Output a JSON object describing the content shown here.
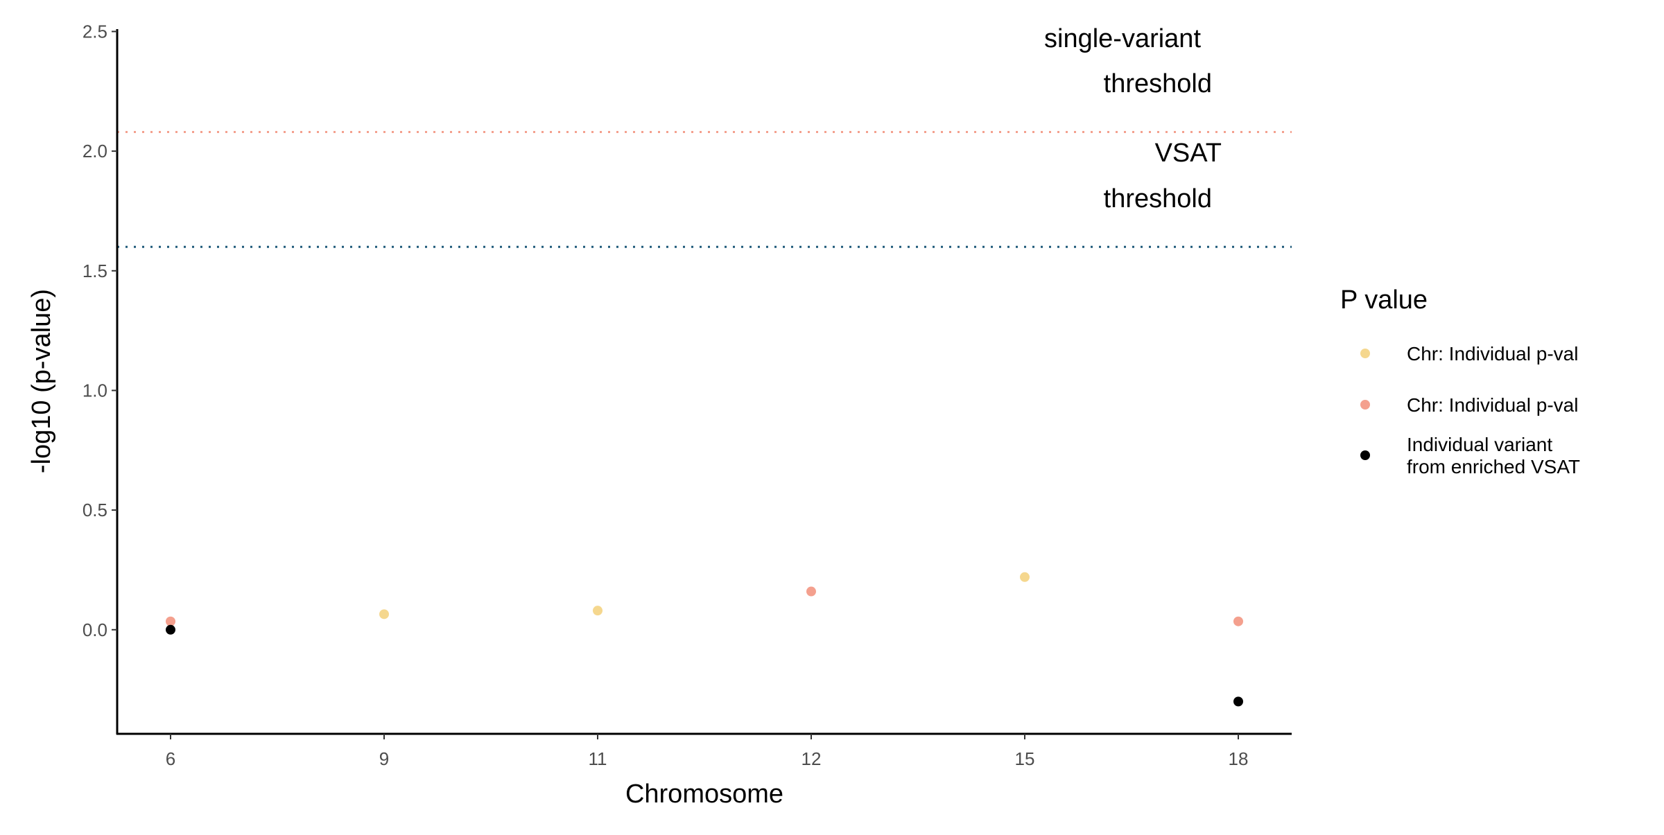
{
  "chart_data": {
    "type": "scatter",
    "xlabel": "Chromosome",
    "ylabel": "-log10 (p-value)",
    "x_categories": [
      "6",
      "9",
      "11",
      "12",
      "15",
      "18"
    ],
    "ylim": [
      -0.435,
      2.51
    ],
    "y_ticks": [
      0.0,
      0.5,
      1.0,
      1.5,
      2.0,
      2.5
    ],
    "y_tick_labels": [
      "0.0",
      "0.5",
      "1.0",
      "1.5",
      "2.0",
      "2.5"
    ],
    "grid": false,
    "points": [
      {
        "x": "6",
        "y": 0.035,
        "series": 1
      },
      {
        "x": "6",
        "y": 0.0,
        "series": 2
      },
      {
        "x": "9",
        "y": 0.065,
        "series": 0
      },
      {
        "x": "11",
        "y": 0.08,
        "series": 0
      },
      {
        "x": "12",
        "y": 0.16,
        "series": 1
      },
      {
        "x": "15",
        "y": 0.22,
        "series": 0
      },
      {
        "x": "18",
        "y": 0.035,
        "series": 1
      },
      {
        "x": "18",
        "y": -0.3,
        "series": 2
      }
    ],
    "hlines": [
      {
        "y": 2.08,
        "color": "#F4A08E",
        "label_lines": [
          "single-variant",
          "threshold"
        ]
      },
      {
        "y": 1.6,
        "color": "#1F5A7A",
        "label_lines": [
          "VSAT",
          "threshold"
        ]
      }
    ],
    "legend": {
      "title": "P value",
      "placement": "right",
      "entries": [
        {
          "lines": [
            "Chr: Individual p-val"
          ],
          "color": "#F5D78E"
        },
        {
          "lines": [
            "Chr: Individual p-val"
          ],
          "color": "#F4A08E"
        },
        {
          "lines": [
            "Individual variant",
            "from enriched VSAT"
          ],
          "color": "#000000"
        }
      ]
    }
  }
}
